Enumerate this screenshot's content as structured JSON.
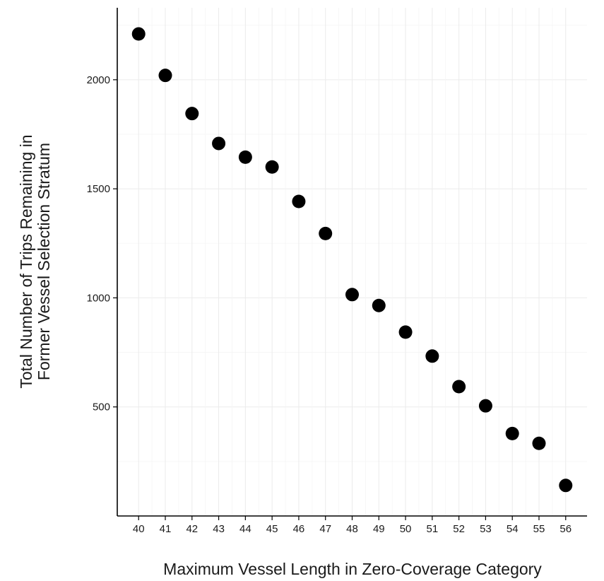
{
  "chart_data": {
    "type": "scatter",
    "title": "",
    "xlabel": "Maximum Vessel Length in Zero-Coverage Category",
    "ylabel": [
      "Total Number of Trips Remaining in",
      "Former Vessel Selection Stratum"
    ],
    "x": [
      40,
      41,
      42,
      43,
      44,
      45,
      46,
      47,
      48,
      49,
      50,
      51,
      52,
      53,
      54,
      55,
      56
    ],
    "y": [
      2210,
      2020,
      1845,
      1708,
      1645,
      1600,
      1442,
      1295,
      1015,
      965,
      843,
      733,
      593,
      505,
      378,
      333,
      140
    ],
    "x_ticks": [
      "40",
      "41",
      "42",
      "43",
      "44",
      "45",
      "46",
      "47",
      "48",
      "49",
      "50",
      "51",
      "52",
      "53",
      "54",
      "55",
      "56"
    ],
    "y_ticks": [
      "500",
      "1000",
      "1500",
      "2000"
    ],
    "xlim": [
      39.2,
      56.8
    ],
    "ylim": [
      0,
      2330
    ],
    "grid": true,
    "legend": "none",
    "point_color": "#000000"
  }
}
